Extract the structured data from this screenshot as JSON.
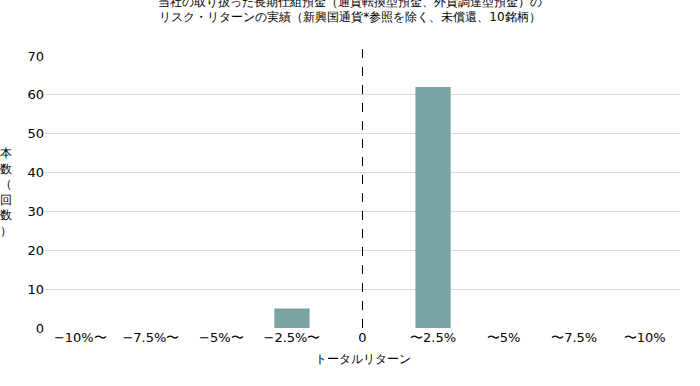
{
  "chart_data": {
    "type": "bar",
    "title": [
      "当社の取り扱った長期仕組預金（通貨転換型預金、外貨調達型預金）の",
      "リスク・リターンの実績（新興国通貨*参照を除く、未償還、10銘柄）"
    ],
    "x_label": "トータルリターン",
    "y_label": "本数（回数）",
    "categories": [
      "−10%〜",
      "−7.5%〜",
      "−5%〜",
      "−2.5%〜",
      "0",
      "〜2.5%",
      "〜5%",
      "〜7.5%",
      "〜10%"
    ],
    "values": [
      0,
      0,
      0,
      5,
      0,
      62,
      0,
      0,
      0
    ],
    "color": "#78a4a5",
    "ylim": [
      0,
      70
    ],
    "yticks": [
      0,
      10,
      20,
      30,
      40,
      50,
      60,
      70
    ],
    "grid": true
  }
}
